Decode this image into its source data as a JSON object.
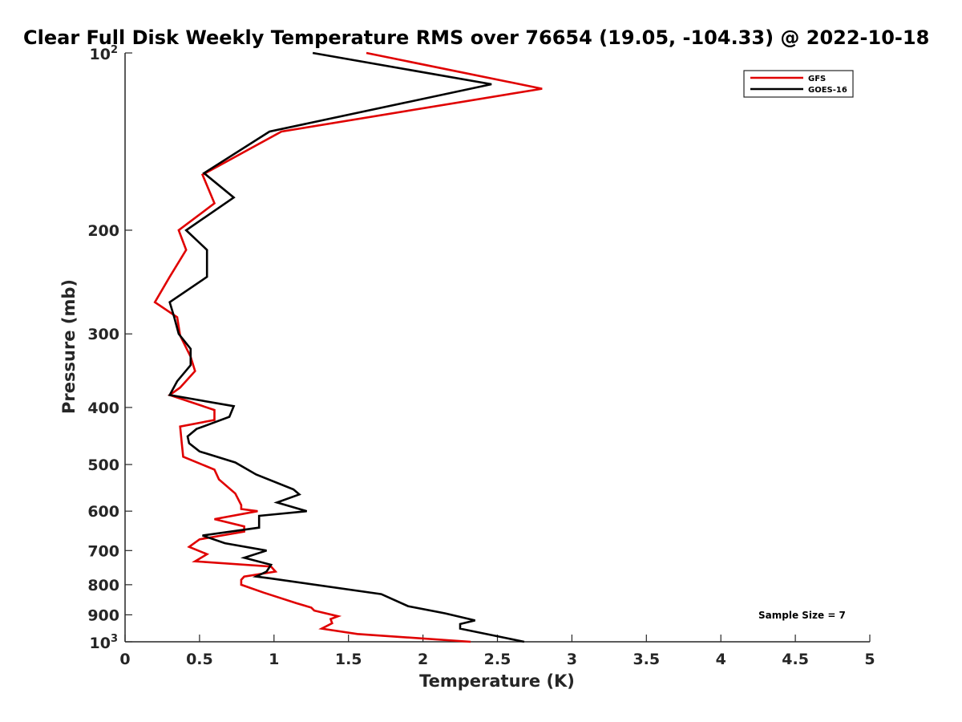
{
  "chart_data": {
    "type": "line",
    "title": "Clear Full Disk Weekly Temperature RMS over 76654 (19.05, -104.33) @ 2022-10-18",
    "xlabel": "Temperature (K)",
    "ylabel": "Pressure (mb)",
    "xlim": [
      0,
      5
    ],
    "ylim": [
      100,
      1000
    ],
    "y_scale": "log",
    "y_reversed": true,
    "x_ticks": [
      0,
      0.5,
      1,
      1.5,
      2,
      2.5,
      3,
      3.5,
      4,
      4.5,
      5
    ],
    "x_tick_labels": [
      "0",
      "0.5",
      "1",
      "1.5",
      "2",
      "2.5",
      "3",
      "3.5",
      "4",
      "4.5",
      "5"
    ],
    "y_ticks": [
      200,
      300,
      400,
      500,
      600,
      700,
      800,
      900
    ],
    "y_tick_labels": [
      "200",
      "300",
      "400",
      "500",
      "600",
      "700",
      "800",
      "900"
    ],
    "y_end_labels": [
      {
        "value": 100,
        "base": "10",
        "exp": "2"
      },
      {
        "value": 1000,
        "base": "10",
        "exp": "3"
      }
    ],
    "grid": false,
    "legend_position": "top-right",
    "annotation": "Sample Size = 7",
    "series": [
      {
        "name": "GFS",
        "color": "#e00000",
        "points": [
          [
            1.62,
            100
          ],
          [
            2.8,
            115
          ],
          [
            1.05,
            136
          ],
          [
            0.52,
            161
          ],
          [
            0.6,
            180
          ],
          [
            0.36,
            200
          ],
          [
            0.41,
            216
          ],
          [
            0.3,
            240
          ],
          [
            0.2,
            265
          ],
          [
            0.35,
            281
          ],
          [
            0.37,
            302
          ],
          [
            0.44,
            328
          ],
          [
            0.47,
            347
          ],
          [
            0.37,
            370
          ],
          [
            0.3,
            381
          ],
          [
            0.6,
            404
          ],
          [
            0.6,
            420
          ],
          [
            0.37,
            431
          ],
          [
            0.38,
            458
          ],
          [
            0.39,
            485
          ],
          [
            0.6,
            510
          ],
          [
            0.63,
            530
          ],
          [
            0.74,
            560
          ],
          [
            0.78,
            586
          ],
          [
            0.78,
            595
          ],
          [
            0.89,
            600
          ],
          [
            0.6,
            619
          ],
          [
            0.8,
            637
          ],
          [
            0.8,
            650
          ],
          [
            0.5,
            670
          ],
          [
            0.43,
            690
          ],
          [
            0.55,
            710
          ],
          [
            0.47,
            730
          ],
          [
            0.98,
            745
          ],
          [
            1.01,
            760
          ],
          [
            0.8,
            775
          ],
          [
            0.78,
            785
          ],
          [
            0.78,
            800
          ],
          [
            0.93,
            825
          ],
          [
            1.15,
            860
          ],
          [
            1.25,
            875
          ],
          [
            1.27,
            885
          ],
          [
            1.43,
            905
          ],
          [
            1.38,
            915
          ],
          [
            1.39,
            930
          ],
          [
            1.32,
            950
          ],
          [
            1.56,
            970
          ],
          [
            2.32,
            1000
          ]
        ]
      },
      {
        "name": "GOES-16",
        "color": "#000000",
        "points": [
          [
            1.26,
            100
          ],
          [
            2.46,
            113
          ],
          [
            0.97,
            136
          ],
          [
            0.53,
            160
          ],
          [
            0.73,
            176
          ],
          [
            0.41,
            200
          ],
          [
            0.55,
            216
          ],
          [
            0.55,
            240
          ],
          [
            0.3,
            265
          ],
          [
            0.33,
            281
          ],
          [
            0.36,
            300
          ],
          [
            0.44,
            318
          ],
          [
            0.44,
            339
          ],
          [
            0.35,
            361
          ],
          [
            0.3,
            381
          ],
          [
            0.73,
            398
          ],
          [
            0.7,
            415
          ],
          [
            0.48,
            435
          ],
          [
            0.42,
            448
          ],
          [
            0.43,
            460
          ],
          [
            0.5,
            475
          ],
          [
            0.74,
            496
          ],
          [
            0.88,
            520
          ],
          [
            1.13,
            551
          ],
          [
            1.17,
            562
          ],
          [
            1.02,
            580
          ],
          [
            1.22,
            600
          ],
          [
            0.9,
            611
          ],
          [
            0.9,
            640
          ],
          [
            0.52,
            660
          ],
          [
            0.67,
            680
          ],
          [
            0.95,
            700
          ],
          [
            0.8,
            720
          ],
          [
            0.98,
            740
          ],
          [
            0.95,
            760
          ],
          [
            0.88,
            775
          ],
          [
            0.97,
            780
          ],
          [
            1.72,
            830
          ],
          [
            1.9,
            870
          ],
          [
            2.15,
            895
          ],
          [
            2.35,
            920
          ],
          [
            2.25,
            933
          ],
          [
            2.25,
            950
          ],
          [
            2.68,
            1000
          ]
        ]
      }
    ]
  }
}
